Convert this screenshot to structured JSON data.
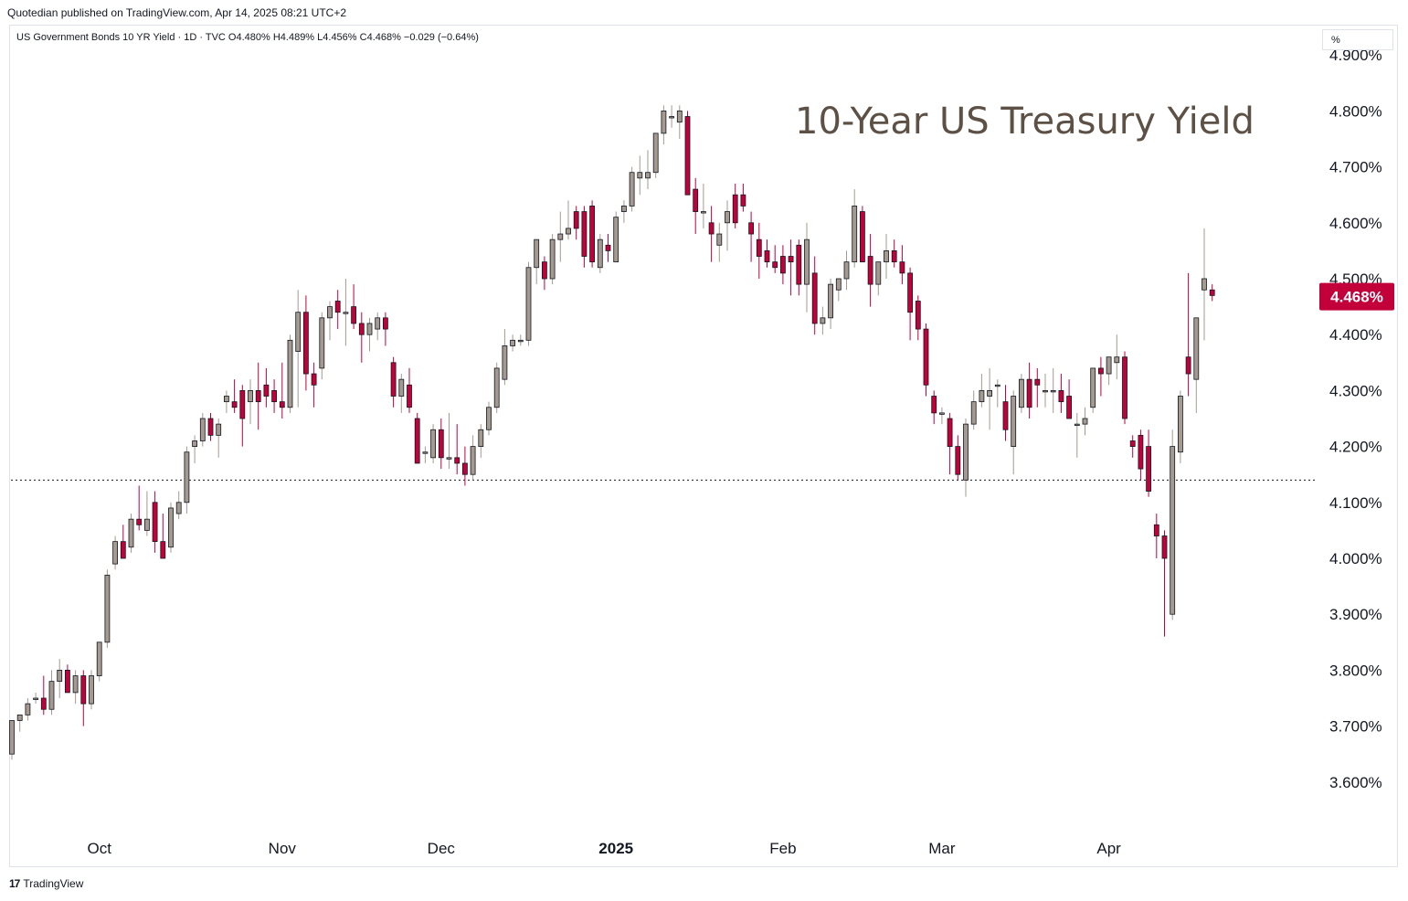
{
  "header": {
    "published_by": "Quotedian published on TradingView.com, Apr 14, 2025 08:21 UTC+2"
  },
  "legend": {
    "text": "US Government Bonds 10 YR Yield · 1D · TVC  O4.480%  H4.489%  L4.456%  C4.468%  −0.029 (−0.64%)"
  },
  "unit_box": "%",
  "footer": {
    "logo_text": "17",
    "brand": "TradingView"
  },
  "colors": {
    "up": "#a59a8f",
    "down": "#c2003a",
    "last_price_bg": "#c2003a",
    "title_color": "#5d5146"
  },
  "chart_data": {
    "type": "candlestick",
    "title": "10-Year US Treasury Yield",
    "y_unit": "%",
    "ylim": [
      3.5,
      4.92
    ],
    "y_ticks": [
      "3.600%",
      "3.700%",
      "3.800%",
      "3.900%",
      "4.000%",
      "4.100%",
      "4.200%",
      "4.300%",
      "4.400%",
      "4.500%",
      "4.600%",
      "4.700%",
      "4.800%",
      "4.900%"
    ],
    "y_tick_values": [
      3.6,
      3.7,
      3.8,
      3.9,
      4.0,
      4.1,
      4.2,
      4.3,
      4.4,
      4.5,
      4.6,
      4.7,
      4.8,
      4.9
    ],
    "x_labels": [
      {
        "label": "Oct",
        "index": 11,
        "bold": false
      },
      {
        "label": "Nov",
        "index": 34,
        "bold": false
      },
      {
        "label": "Dec",
        "index": 54,
        "bold": false
      },
      {
        "label": "2025",
        "index": 76,
        "bold": true
      },
      {
        "label": "Feb",
        "index": 97,
        "bold": false
      },
      {
        "label": "Mar",
        "index": 117,
        "bold": false
      },
      {
        "label": "Apr",
        "index": 138,
        "bold": false
      }
    ],
    "last_price_label": "4.468%",
    "last_price": 4.468,
    "reference_line": 4.14,
    "candles": [
      [
        3.65,
        3.71,
        3.64,
        3.71
      ],
      [
        3.71,
        3.72,
        3.69,
        3.72
      ],
      [
        3.72,
        3.75,
        3.71,
        3.74
      ],
      [
        3.75,
        3.76,
        3.74,
        3.75
      ],
      [
        3.75,
        3.79,
        3.72,
        3.73
      ],
      [
        3.73,
        3.8,
        3.72,
        3.78
      ],
      [
        3.78,
        3.82,
        3.75,
        3.8
      ],
      [
        3.8,
        3.81,
        3.76,
        3.76
      ],
      [
        3.76,
        3.8,
        3.74,
        3.79
      ],
      [
        3.79,
        3.8,
        3.7,
        3.74
      ],
      [
        3.74,
        3.8,
        3.73,
        3.79
      ],
      [
        3.79,
        3.85,
        3.78,
        3.85
      ],
      [
        3.85,
        3.98,
        3.84,
        3.97
      ],
      [
        3.99,
        4.04,
        3.98,
        4.03
      ],
      [
        4.03,
        4.06,
        4.0,
        4.0
      ],
      [
        4.02,
        4.08,
        4.01,
        4.07
      ],
      [
        4.07,
        4.13,
        4.05,
        4.06
      ],
      [
        4.05,
        4.12,
        4.04,
        4.07
      ],
      [
        4.1,
        4.12,
        4.01,
        4.03
      ],
      [
        4.03,
        4.08,
        4.0,
        4.0
      ],
      [
        4.02,
        4.1,
        4.01,
        4.09
      ],
      [
        4.08,
        4.12,
        4.07,
        4.1
      ],
      [
        4.1,
        4.2,
        4.08,
        4.19
      ],
      [
        4.2,
        4.22,
        4.17,
        4.21
      ],
      [
        4.21,
        4.26,
        4.2,
        4.25
      ],
      [
        4.25,
        4.26,
        4.21,
        4.22
      ],
      [
        4.22,
        4.25,
        4.18,
        4.24
      ],
      [
        4.28,
        4.3,
        4.26,
        4.29
      ],
      [
        4.28,
        4.32,
        4.26,
        4.27
      ],
      [
        4.3,
        4.31,
        4.2,
        4.25
      ],
      [
        4.28,
        4.32,
        4.24,
        4.3
      ],
      [
        4.3,
        4.35,
        4.23,
        4.28
      ],
      [
        4.31,
        4.34,
        4.27,
        4.29
      ],
      [
        4.3,
        4.32,
        4.26,
        4.28
      ],
      [
        4.28,
        4.35,
        4.25,
        4.27
      ],
      [
        4.27,
        4.4,
        4.26,
        4.39
      ],
      [
        4.37,
        4.48,
        4.27,
        4.44
      ],
      [
        4.44,
        4.47,
        4.3,
        4.33
      ],
      [
        4.33,
        4.35,
        4.27,
        4.31
      ],
      [
        4.34,
        4.44,
        4.32,
        4.43
      ],
      [
        4.43,
        4.46,
        4.39,
        4.45
      ],
      [
        4.46,
        4.48,
        4.41,
        4.44
      ],
      [
        4.44,
        4.5,
        4.38,
        4.44
      ],
      [
        4.45,
        4.49,
        4.41,
        4.42
      ],
      [
        4.42,
        4.44,
        4.35,
        4.4
      ],
      [
        4.4,
        4.43,
        4.37,
        4.42
      ],
      [
        4.41,
        4.44,
        4.39,
        4.43
      ],
      [
        4.43,
        4.44,
        4.38,
        4.41
      ],
      [
        4.35,
        4.36,
        4.27,
        4.29
      ],
      [
        4.29,
        4.33,
        4.26,
        4.32
      ],
      [
        4.31,
        4.34,
        4.26,
        4.27
      ],
      [
        4.25,
        4.26,
        4.18,
        4.17
      ],
      [
        4.19,
        4.2,
        4.17,
        4.19
      ],
      [
        4.18,
        4.24,
        4.17,
        4.23
      ],
      [
        4.23,
        4.25,
        4.16,
        4.18
      ],
      [
        4.18,
        4.26,
        4.16,
        4.18
      ],
      [
        4.18,
        4.24,
        4.15,
        4.17
      ],
      [
        4.17,
        4.2,
        4.13,
        4.15
      ],
      [
        4.15,
        4.22,
        4.14,
        4.2
      ],
      [
        4.2,
        4.24,
        4.18,
        4.23
      ],
      [
        4.23,
        4.28,
        4.22,
        4.27
      ],
      [
        4.27,
        4.35,
        4.26,
        4.34
      ],
      [
        4.32,
        4.41,
        4.31,
        4.38
      ],
      [
        4.38,
        4.4,
        4.37,
        4.39
      ],
      [
        4.39,
        4.4,
        4.38,
        4.39
      ],
      [
        4.39,
        4.53,
        4.38,
        4.52
      ],
      [
        4.52,
        4.57,
        4.49,
        4.57
      ],
      [
        4.53,
        4.54,
        4.48,
        4.5
      ],
      [
        4.5,
        4.58,
        4.49,
        4.57
      ],
      [
        4.57,
        4.62,
        4.53,
        4.58
      ],
      [
        4.58,
        4.64,
        4.57,
        4.59
      ],
      [
        4.62,
        4.63,
        4.57,
        4.59
      ],
      [
        4.62,
        4.63,
        4.52,
        4.54
      ],
      [
        4.63,
        4.64,
        4.52,
        4.53
      ],
      [
        4.52,
        4.58,
        4.51,
        4.57
      ],
      [
        4.56,
        4.58,
        4.53,
        4.55
      ],
      [
        4.53,
        4.62,
        4.53,
        4.61
      ],
      [
        4.62,
        4.64,
        4.6,
        4.63
      ],
      [
        4.63,
        4.7,
        4.62,
        4.69
      ],
      [
        4.68,
        4.72,
        4.65,
        4.69
      ],
      [
        4.68,
        4.73,
        4.66,
        4.69
      ],
      [
        4.69,
        4.76,
        4.68,
        4.76
      ],
      [
        4.76,
        4.81,
        4.74,
        4.8
      ],
      [
        4.79,
        4.81,
        4.77,
        4.79
      ],
      [
        4.78,
        4.81,
        4.75,
        4.8
      ],
      [
        4.79,
        4.8,
        4.65,
        4.65
      ],
      [
        4.66,
        4.68,
        4.58,
        4.62
      ],
      [
        4.62,
        4.67,
        4.59,
        4.62
      ],
      [
        4.6,
        4.63,
        4.53,
        4.58
      ],
      [
        4.56,
        4.6,
        4.53,
        4.58
      ],
      [
        4.6,
        4.64,
        4.55,
        4.62
      ],
      [
        4.65,
        4.67,
        4.59,
        4.6
      ],
      [
        4.65,
        4.67,
        4.62,
        4.63
      ],
      [
        4.6,
        4.62,
        4.53,
        4.58
      ],
      [
        4.57,
        4.6,
        4.5,
        4.54
      ],
      [
        4.55,
        4.57,
        4.52,
        4.53
      ],
      [
        4.53,
        4.56,
        4.51,
        4.52
      ],
      [
        4.54,
        4.56,
        4.49,
        4.51
      ],
      [
        4.54,
        4.57,
        4.47,
        4.53
      ],
      [
        4.56,
        4.57,
        4.47,
        4.49
      ],
      [
        4.49,
        4.6,
        4.44,
        4.57
      ],
      [
        4.51,
        4.54,
        4.4,
        4.42
      ],
      [
        4.42,
        4.45,
        4.4,
        4.43
      ],
      [
        4.43,
        4.5,
        4.41,
        4.49
      ],
      [
        4.48,
        4.5,
        4.46,
        4.5
      ],
      [
        4.5,
        4.55,
        4.48,
        4.53
      ],
      [
        4.53,
        4.66,
        4.52,
        4.63
      ],
      [
        4.62,
        4.63,
        4.53,
        4.53
      ],
      [
        4.54,
        4.58,
        4.45,
        4.49
      ],
      [
        4.49,
        4.53,
        4.47,
        4.53
      ],
      [
        4.53,
        4.58,
        4.5,
        4.55
      ],
      [
        4.55,
        4.57,
        4.52,
        4.53
      ],
      [
        4.53,
        4.56,
        4.49,
        4.51
      ],
      [
        4.51,
        4.52,
        4.39,
        4.44
      ],
      [
        4.46,
        4.47,
        4.39,
        4.41
      ],
      [
        4.41,
        4.42,
        4.29,
        4.31
      ],
      [
        4.29,
        4.3,
        4.24,
        4.26
      ],
      [
        4.26,
        4.27,
        4.24,
        4.26
      ],
      [
        4.25,
        4.26,
        4.15,
        4.2
      ],
      [
        4.2,
        4.22,
        4.14,
        4.15
      ],
      [
        4.14,
        4.25,
        4.11,
        4.24
      ],
      [
        4.24,
        4.3,
        4.23,
        4.28
      ],
      [
        4.28,
        4.33,
        4.27,
        4.3
      ],
      [
        4.29,
        4.34,
        4.23,
        4.3
      ],
      [
        4.31,
        4.32,
        4.27,
        4.31
      ],
      [
        4.28,
        4.31,
        4.21,
        4.23
      ],
      [
        4.2,
        4.3,
        4.15,
        4.29
      ],
      [
        4.27,
        4.33,
        4.26,
        4.32
      ],
      [
        4.32,
        4.35,
        4.25,
        4.27
      ],
      [
        4.32,
        4.34,
        4.27,
        4.31
      ],
      [
        4.3,
        4.33,
        4.27,
        4.3
      ],
      [
        4.3,
        4.34,
        4.26,
        4.3
      ],
      [
        4.3,
        4.33,
        4.26,
        4.28
      ],
      [
        4.29,
        4.32,
        4.25,
        4.25
      ],
      [
        4.24,
        4.26,
        4.18,
        4.24
      ],
      [
        4.24,
        4.27,
        4.22,
        4.25
      ],
      [
        4.27,
        4.34,
        4.26,
        4.34
      ],
      [
        4.34,
        4.36,
        4.29,
        4.33
      ],
      [
        4.33,
        4.35,
        4.31,
        4.36
      ],
      [
        4.35,
        4.4,
        4.32,
        4.36
      ],
      [
        4.36,
        4.37,
        4.24,
        4.25
      ],
      [
        4.21,
        4.22,
        4.18,
        4.2
      ],
      [
        4.22,
        4.23,
        4.14,
        4.16
      ],
      [
        4.2,
        4.23,
        4.11,
        4.12
      ],
      [
        4.06,
        4.08,
        4.0,
        4.04
      ],
      [
        4.04,
        4.05,
        3.86,
        4.0
      ],
      [
        3.9,
        4.23,
        3.89,
        4.2
      ],
      [
        4.19,
        4.3,
        4.17,
        4.29
      ],
      [
        4.36,
        4.51,
        4.29,
        4.33
      ],
      [
        4.32,
        4.43,
        4.26,
        4.43
      ],
      [
        4.48,
        4.59,
        4.39,
        4.5
      ],
      [
        4.48,
        4.49,
        4.46,
        4.47
      ]
    ]
  }
}
